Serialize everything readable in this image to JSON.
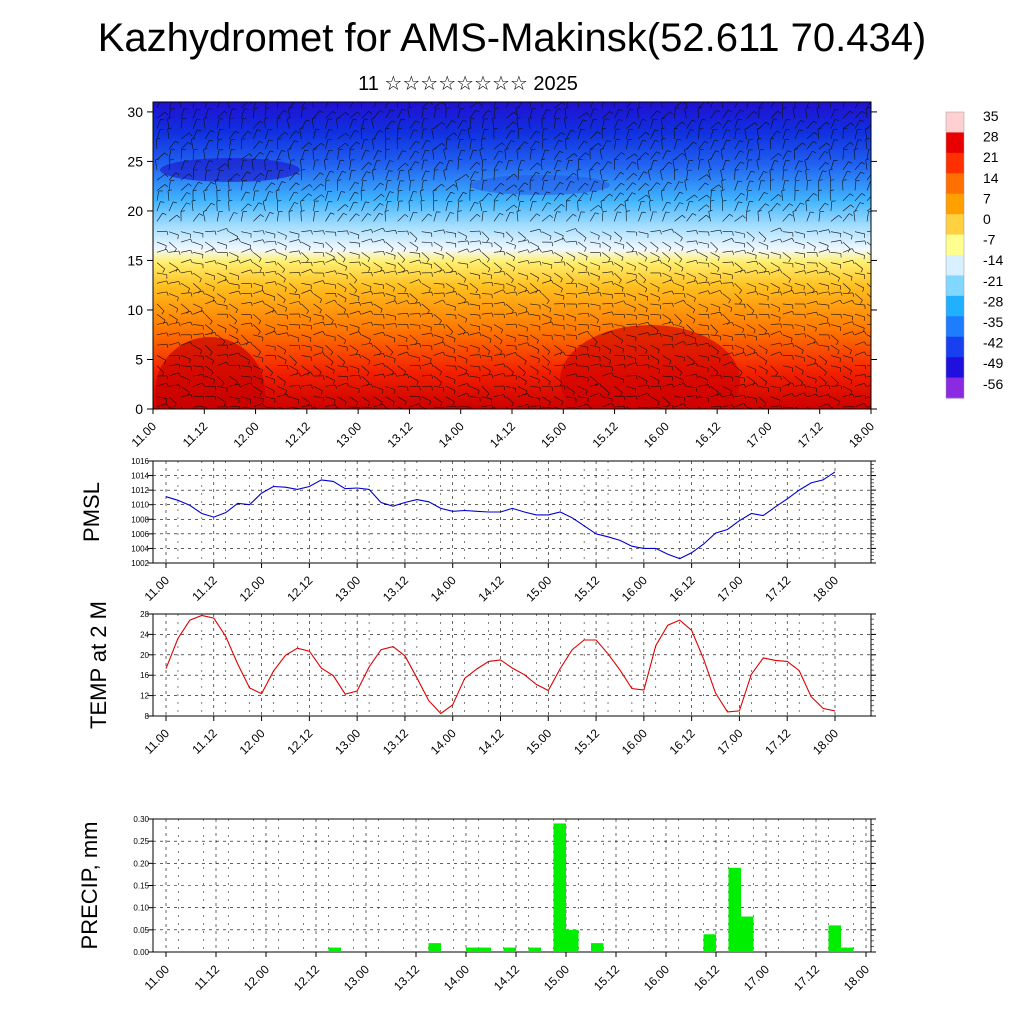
{
  "title": "Kazhydromet for AMS-Makinsk(52.611 70.434)",
  "subtitle": "11 ☆☆☆☆☆☆☆☆ 2025",
  "time_ticks": [
    "11.00",
    "11.12",
    "12.00",
    "12.12",
    "13.00",
    "13.12",
    "14.00",
    "14.12",
    "15.00",
    "15.12",
    "16.00",
    "16.12",
    "17.00",
    "17.12",
    "18.00"
  ],
  "chart_data": [
    {
      "type": "heatmap",
      "name_hint": "vertical section",
      "xlabel": "",
      "ylabel": "",
      "x_ticks": [
        "11.00",
        "11.12",
        "12.00",
        "12.12",
        "13.00",
        "13.12",
        "14.00",
        "14.12",
        "15.00",
        "15.12",
        "16.00",
        "16.12",
        "17.00",
        "17.12",
        "18.00"
      ],
      "y_ticks": [
        0,
        5,
        10,
        15,
        20,
        25,
        30
      ],
      "ylim": [
        0,
        31
      ],
      "colorbar_labels": [
        "35",
        "28",
        "21",
        "14",
        "7",
        "0",
        "-7",
        "-14",
        "-21",
        "-28",
        "-35",
        "-42",
        "-49",
        "-56"
      ],
      "colors": {
        "hot": "#d40000",
        "warm": "#ff6a00",
        "mild": "#ffd23c",
        "neutral": "#ffffd0",
        "cold": "#40c8ff",
        "cold2": "#1e78ff",
        "frigid": "#2010e0",
        "min": "#8a2be2"
      },
      "grid": false,
      "overlay": "wind barbs"
    },
    {
      "type": "line",
      "ylabel": "PMSL",
      "y_ticks": [
        1002,
        1004,
        1006,
        1008,
        1010,
        1012,
        1014,
        1016
      ],
      "ylim": [
        1002,
        1016
      ],
      "x_ticks": [
        "11.00",
        "11.12",
        "12.00",
        "12.12",
        "13.00",
        "13.12",
        "14.00",
        "14.12",
        "15.00",
        "15.12",
        "16.00",
        "16.12",
        "17.00",
        "17.12",
        "18.00"
      ],
      "grid": true,
      "color": "#0000cc",
      "values": [
        1011.1,
        1010.6,
        1009.9,
        1008.8,
        1008.3,
        1008.9,
        1010.2,
        1010.0,
        1011.6,
        1012.5,
        1012.4,
        1012.1,
        1012.5,
        1013.4,
        1013.2,
        1012.2,
        1012.3,
        1012.1,
        1010.3,
        1009.8,
        1010.3,
        1010.7,
        1010.4,
        1009.5,
        1009.1,
        1009.2,
        1009.1,
        1009.0,
        1009.0,
        1009.5,
        1009.0,
        1008.6,
        1008.6,
        1009.0,
        1008.2,
        1007.1,
        1006.0,
        1005.6,
        1005.1,
        1004.3,
        1004.0,
        1004.0,
        1003.2,
        1002.6,
        1003.4,
        1004.6,
        1006.1,
        1006.6,
        1007.8,
        1008.8,
        1008.5,
        1009.7,
        1010.8,
        1012.0,
        1013.0,
        1013.4,
        1014.5
      ]
    },
    {
      "type": "line",
      "ylabel": "TEMP at 2 M",
      "y_ticks": [
        8,
        12,
        16,
        20,
        24,
        28
      ],
      "ylim": [
        8,
        28
      ],
      "x_ticks": [
        "11.00",
        "11.12",
        "12.00",
        "12.12",
        "13.00",
        "13.12",
        "14.00",
        "14.12",
        "15.00",
        "15.12",
        "16.00",
        "16.12",
        "17.00",
        "17.12",
        "18.00"
      ],
      "grid": true,
      "color": "#dd0000",
      "values": [
        17.3,
        23.2,
        26.8,
        27.7,
        27.2,
        23.6,
        18.2,
        13.5,
        12.4,
        16.8,
        19.9,
        21.3,
        20.7,
        17.4,
        15.9,
        12.3,
        12.9,
        17.6,
        21.0,
        21.6,
        19.8,
        15.5,
        11.0,
        8.5,
        10.2,
        15.4,
        17.2,
        18.7,
        19.0,
        17.4,
        16.1,
        14.2,
        13.0,
        17.3,
        21.0,
        22.9,
        22.9,
        20.2,
        17.0,
        13.4,
        13.1,
        21.8,
        25.8,
        26.8,
        24.8,
        19.2,
        12.5,
        8.8,
        9.0,
        16.2,
        19.4,
        18.9,
        18.7,
        16.9,
        11.8,
        9.5,
        9.0
      ]
    },
    {
      "type": "bar",
      "ylabel": "PRECIP, mm",
      "y_ticks": [
        "0.00",
        "0.05",
        "0.10",
        "0.15",
        "0.20",
        "0.25",
        "0.30"
      ],
      "ylim": [
        0,
        0.3
      ],
      "x_ticks": [
        "11.00",
        "11.12",
        "12.00",
        "12.12",
        "13.00",
        "13.12",
        "14.00",
        "14.12",
        "15.00",
        "15.12",
        "16.00",
        "16.12",
        "17.00",
        "17.12",
        "18.00"
      ],
      "grid": true,
      "color": "#00ee00",
      "bars": [
        {
          "t": 13,
          "value": 0.01
        },
        {
          "t": 21,
          "value": 0.02
        },
        {
          "t": 24,
          "value": 0.01
        },
        {
          "t": 25,
          "value": 0.01
        },
        {
          "t": 27,
          "value": 0.01
        },
        {
          "t": 29,
          "value": 0.01
        },
        {
          "t": 31,
          "value": 0.29
        },
        {
          "t": 32,
          "value": 0.05
        },
        {
          "t": 34,
          "value": 0.02
        },
        {
          "t": 43,
          "value": 0.04
        },
        {
          "t": 45,
          "value": 0.19
        },
        {
          "t": 46,
          "value": 0.08
        },
        {
          "t": 53,
          "value": 0.06
        },
        {
          "t": 54,
          "value": 0.01
        }
      ]
    }
  ]
}
